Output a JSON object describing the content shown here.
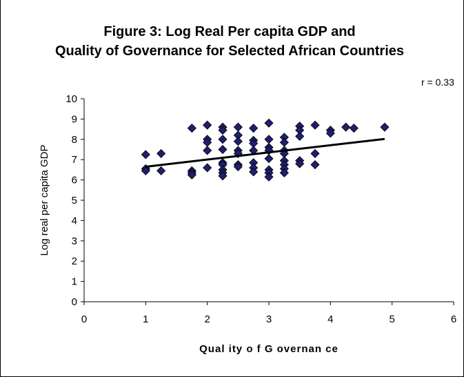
{
  "chart_data": {
    "type": "scatter",
    "title_line1": "Figure 3: Log Real Per capita GDP and",
    "title_line2": "Quality of Governance for Selected African Countries",
    "annotation": "r = 0.33",
    "xlabel": "Qual ity o f G overnan ce",
    "ylabel": "Log real per capita GDP",
    "xlim": [
      0,
      6
    ],
    "ylim": [
      0,
      10
    ],
    "xticks": [
      "0",
      "1",
      "2",
      "3",
      "4",
      "5",
      "6"
    ],
    "yticks": [
      "0",
      "1",
      "2",
      "3",
      "4",
      "5",
      "6",
      "7",
      "8",
      "9",
      "10"
    ],
    "grid": false,
    "legend": "none",
    "marker_color": "#1f1f6e",
    "trendline": {
      "x": [
        1,
        4.88
      ],
      "y": [
        6.65,
        8.02
      ],
      "color": "#000000"
    },
    "points": [
      [
        1,
        7.25
      ],
      [
        1,
        6.55
      ],
      [
        1,
        6.45
      ],
      [
        1.25,
        7.3
      ],
      [
        1.25,
        6.45
      ],
      [
        1.75,
        8.55
      ],
      [
        1.75,
        6.45
      ],
      [
        1.75,
        6.35
      ],
      [
        1.75,
        6.25
      ],
      [
        2,
        8.7
      ],
      [
        2,
        8.0
      ],
      [
        2,
        7.85
      ],
      [
        2,
        7.45
      ],
      [
        2,
        6.6
      ],
      [
        2.25,
        8.6
      ],
      [
        2.25,
        8.45
      ],
      [
        2.25,
        8.0
      ],
      [
        2.25,
        7.5
      ],
      [
        2.25,
        6.85
      ],
      [
        2.25,
        6.75
      ],
      [
        2.25,
        6.5
      ],
      [
        2.25,
        6.35
      ],
      [
        2.25,
        6.2
      ],
      [
        2.5,
        8.6
      ],
      [
        2.5,
        8.2
      ],
      [
        2.5,
        7.9
      ],
      [
        2.5,
        7.45
      ],
      [
        2.5,
        7.3
      ],
      [
        2.5,
        6.75
      ],
      [
        2.5,
        6.65
      ],
      [
        2.75,
        8.55
      ],
      [
        2.75,
        7.95
      ],
      [
        2.75,
        7.8
      ],
      [
        2.75,
        7.45
      ],
      [
        2.75,
        6.85
      ],
      [
        2.75,
        6.6
      ],
      [
        2.75,
        6.4
      ],
      [
        3,
        8.8
      ],
      [
        3,
        8.0
      ],
      [
        3,
        7.6
      ],
      [
        3,
        7.45
      ],
      [
        3,
        7.05
      ],
      [
        3,
        6.5
      ],
      [
        3,
        6.35
      ],
      [
        3,
        6.15
      ],
      [
        3.25,
        8.1
      ],
      [
        3.25,
        7.85
      ],
      [
        3.25,
        7.45
      ],
      [
        3.25,
        7.3
      ],
      [
        3.25,
        6.95
      ],
      [
        3.25,
        6.75
      ],
      [
        3.25,
        6.55
      ],
      [
        3.25,
        6.35
      ],
      [
        3.5,
        8.65
      ],
      [
        3.5,
        8.45
      ],
      [
        3.5,
        8.15
      ],
      [
        3.5,
        6.95
      ],
      [
        3.5,
        6.8
      ],
      [
        3.75,
        8.7
      ],
      [
        3.75,
        7.3
      ],
      [
        3.75,
        6.75
      ],
      [
        4,
        8.45
      ],
      [
        4,
        8.3
      ],
      [
        4.25,
        8.6
      ],
      [
        4.38,
        8.55
      ],
      [
        4.88,
        8.6
      ]
    ]
  }
}
